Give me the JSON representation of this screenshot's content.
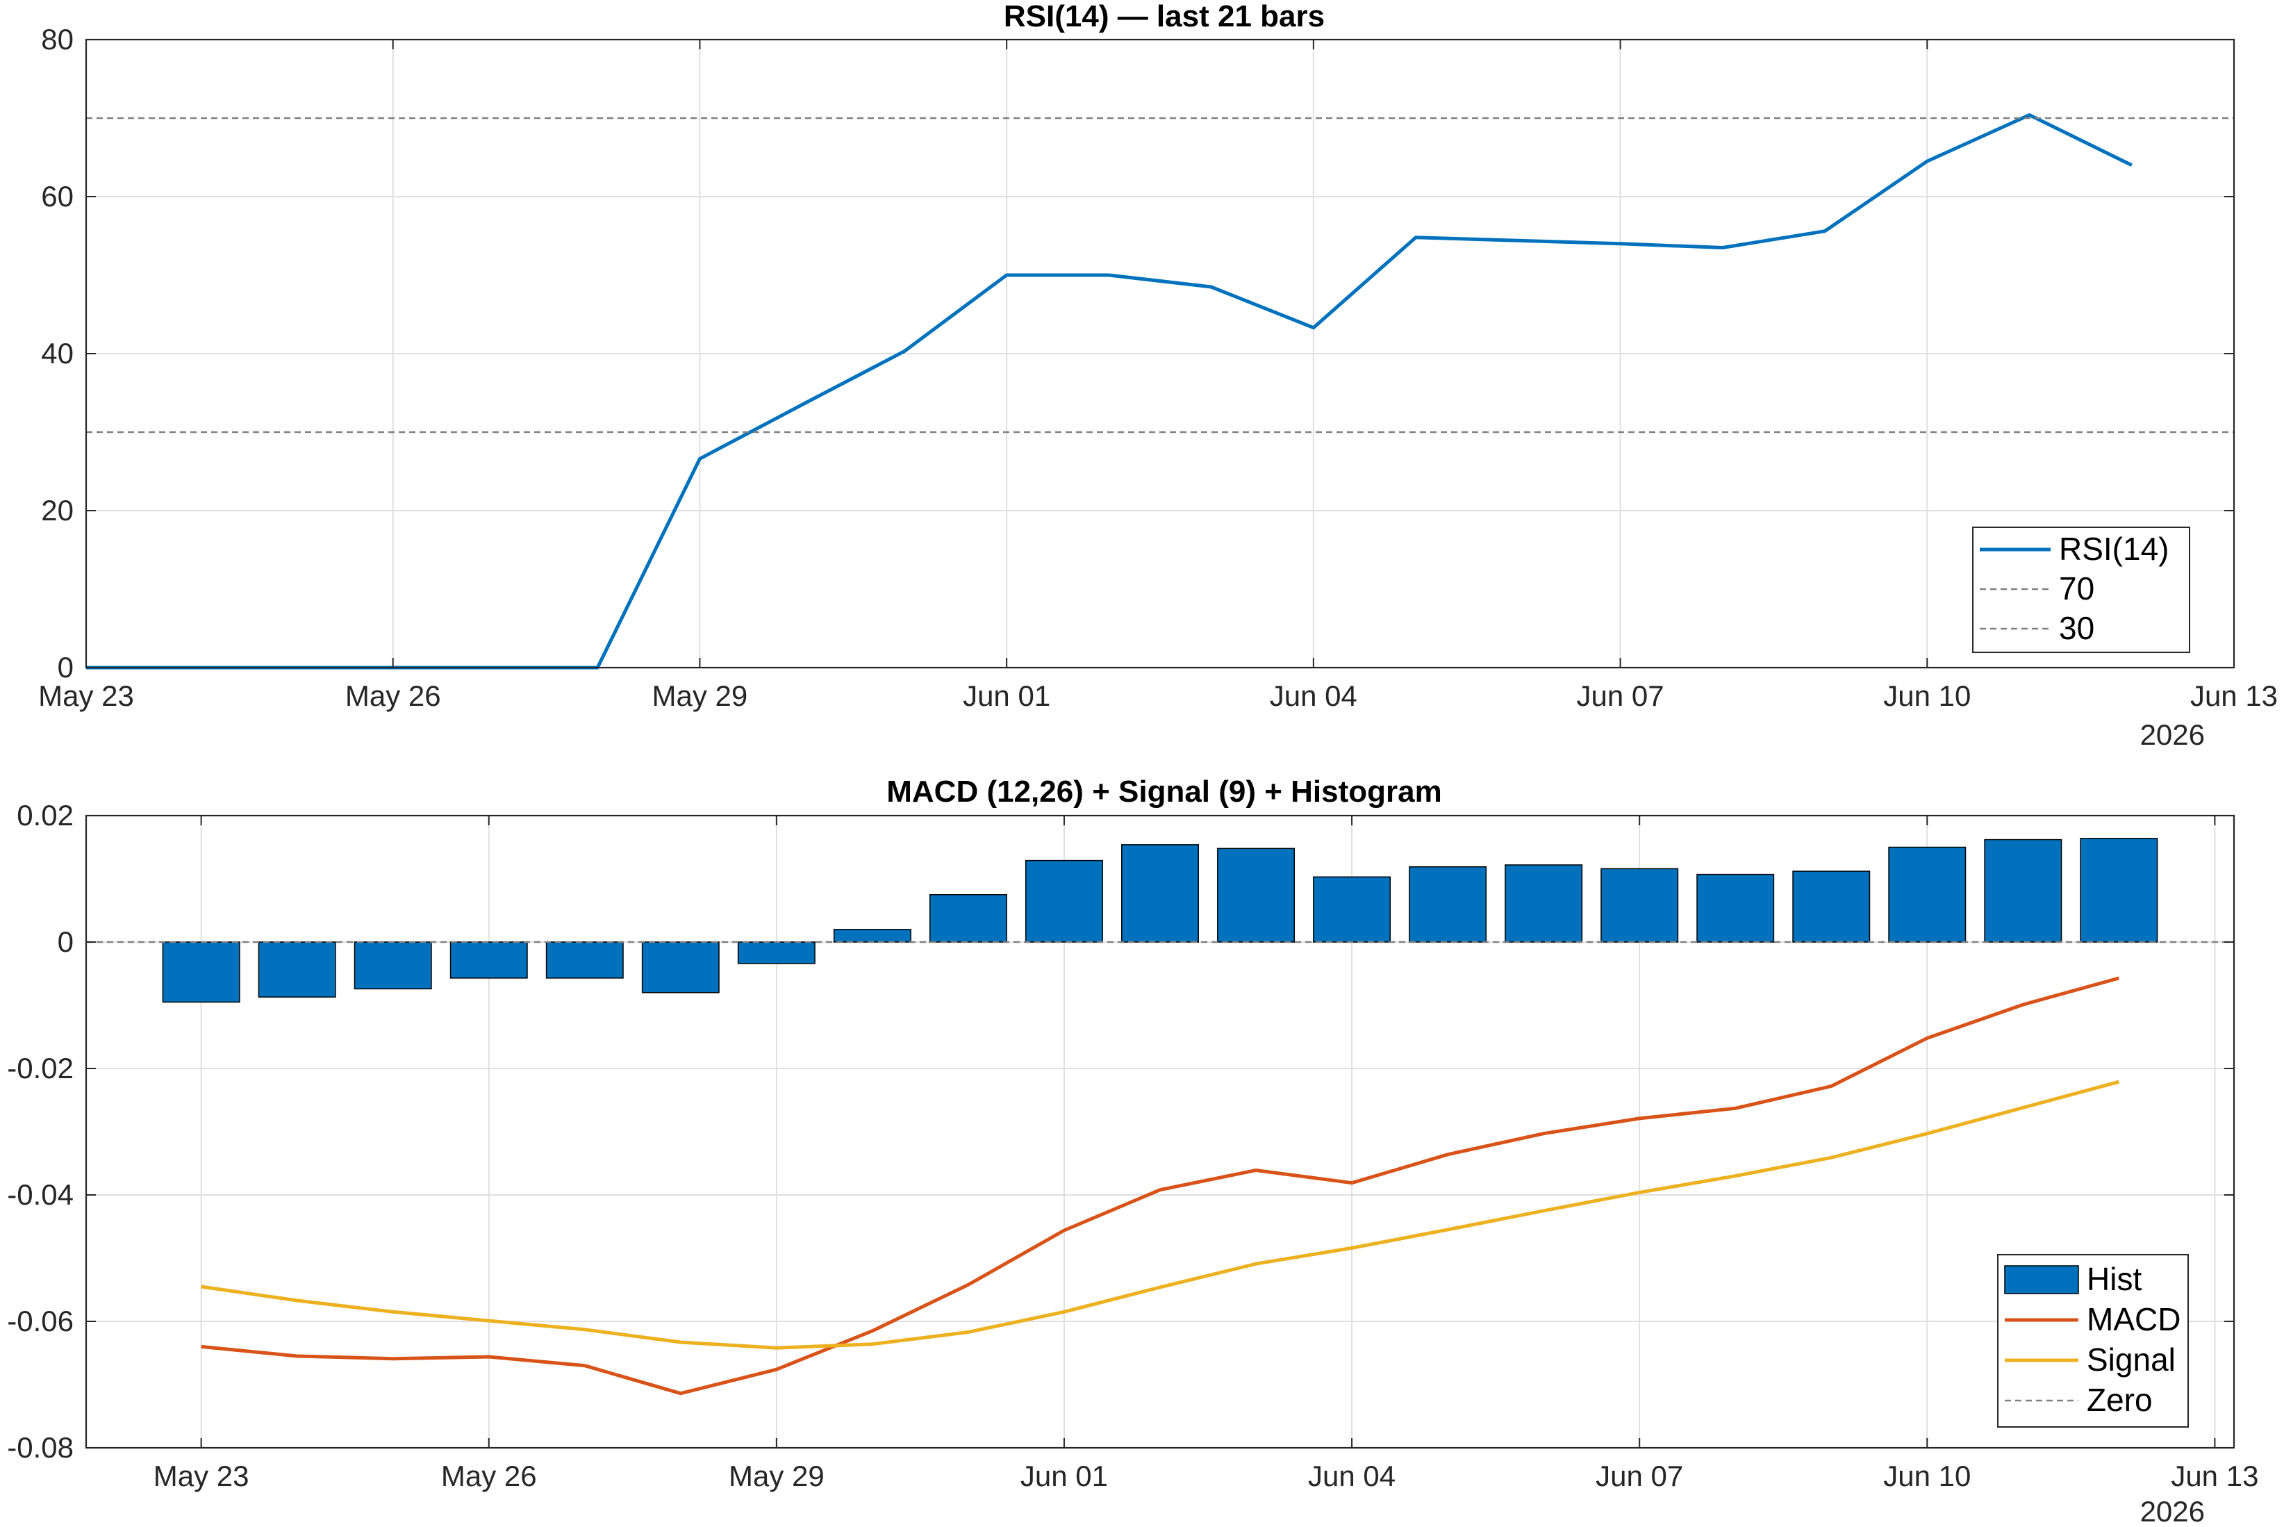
{
  "chart_data": [
    {
      "type": "line",
      "title": "RSI(14) — last 21 bars",
      "xlabel": "",
      "ylabel": "",
      "x_tick_labels": [
        "May 23",
        "May 26",
        "May 29",
        "Jun 01",
        "Jun 04",
        "Jun 07",
        "Jun 10",
        "Jun 13"
      ],
      "x_tick_days": [
        0,
        3,
        6,
        9,
        12,
        15,
        18,
        21
      ],
      "x_year_label": "2026",
      "xlim_days": [
        0,
        21
      ],
      "ylim": [
        0,
        80
      ],
      "y_ticks": [
        0,
        20,
        40,
        60,
        80
      ],
      "grid": true,
      "legend_position": "bottom-right",
      "x": [
        "2026-05-23",
        "2026-05-24",
        "2026-05-25",
        "2026-05-26",
        "2026-05-27",
        "2026-05-28",
        "2026-05-29",
        "2026-05-30",
        "2026-05-31",
        "2026-06-01",
        "2026-06-02",
        "2026-06-03",
        "2026-06-04",
        "2026-06-05",
        "2026-06-06",
        "2026-06-07",
        "2026-06-08",
        "2026-06-09",
        "2026-06-10",
        "2026-06-11",
        "2026-06-12"
      ],
      "series": [
        {
          "name": "RSI(14)",
          "color": "#0072BD",
          "style": "solid",
          "values": [
            0,
            0,
            0,
            0,
            0,
            0,
            26.6,
            33.5,
            40.3,
            50.0,
            50.0,
            48.5,
            43.3,
            54.8,
            54.4,
            54.0,
            53.5,
            55.6,
            64.5,
            70.4,
            64.0
          ]
        },
        {
          "name": "70",
          "color": "#808080",
          "style": "dashed",
          "constant": 70
        },
        {
          "name": "30",
          "color": "#808080",
          "style": "dashed",
          "constant": 30
        }
      ]
    },
    {
      "type": "bar",
      "title": "MACD (12,26) + Signal (9) + Histogram",
      "xlabel": "",
      "ylabel": "",
      "x_tick_labels": [
        "May 23",
        "May 26",
        "May 29",
        "Jun 01",
        "Jun 04",
        "Jun 07",
        "Jun 10",
        "Jun 13"
      ],
      "x_tick_days": [
        0,
        3,
        6,
        9,
        12,
        15,
        18,
        21
      ],
      "x_year_label": "2026",
      "xlim_days": [
        -1.2,
        21.2
      ],
      "ylim": [
        -0.08,
        0.02
      ],
      "y_ticks": [
        0.02,
        0,
        -0.02,
        -0.04,
        -0.06,
        -0.08
      ],
      "y_tick_labels": [
        "0.02",
        "0",
        "-0.02",
        "-0.04",
        "-0.06",
        "-0.08"
      ],
      "grid": true,
      "legend_position": "bottom-right",
      "x": [
        "2026-05-23",
        "2026-05-24",
        "2026-05-25",
        "2026-05-26",
        "2026-05-27",
        "2026-05-28",
        "2026-05-29",
        "2026-05-30",
        "2026-05-31",
        "2026-06-01",
        "2026-06-02",
        "2026-06-03",
        "2026-06-04",
        "2026-06-05",
        "2026-06-06",
        "2026-06-07",
        "2026-06-08",
        "2026-06-09",
        "2026-06-10",
        "2026-06-11",
        "2026-06-12"
      ],
      "series": [
        {
          "name": "Hist",
          "kind": "bar",
          "color": "#0072BD",
          "values": [
            -0.0095,
            -0.0087,
            -0.0074,
            -0.0057,
            -0.0057,
            -0.008,
            -0.0034,
            0.002,
            0.0075,
            0.0129,
            0.0154,
            0.0148,
            0.0103,
            0.0119,
            0.0122,
            0.0116,
            0.0107,
            0.0112,
            0.015,
            0.0162,
            0.0164
          ]
        },
        {
          "name": "MACD",
          "kind": "line",
          "color": "#D95319",
          "values": [
            -0.064,
            -0.0655,
            -0.0659,
            -0.0656,
            -0.067,
            -0.0714,
            -0.0676,
            -0.0615,
            -0.0542,
            -0.0456,
            -0.0392,
            -0.0361,
            -0.0381,
            -0.0336,
            -0.0303,
            -0.0279,
            -0.0263,
            -0.0228,
            -0.0152,
            -0.0099,
            -0.0057
          ]
        },
        {
          "name": "Signal",
          "kind": "line",
          "color": "#EDB120",
          "values": [
            -0.0545,
            -0.0567,
            -0.0585,
            -0.0599,
            -0.0613,
            -0.0633,
            -0.0642,
            -0.0636,
            -0.0617,
            -0.0585,
            -0.0546,
            -0.0509,
            -0.0484,
            -0.0455,
            -0.0425,
            -0.0396,
            -0.037,
            -0.0341,
            -0.0303,
            -0.0262,
            -0.0221
          ]
        },
        {
          "name": "Zero",
          "kind": "line",
          "color": "#808080",
          "style": "dashed",
          "constant": 0
        }
      ]
    }
  ]
}
